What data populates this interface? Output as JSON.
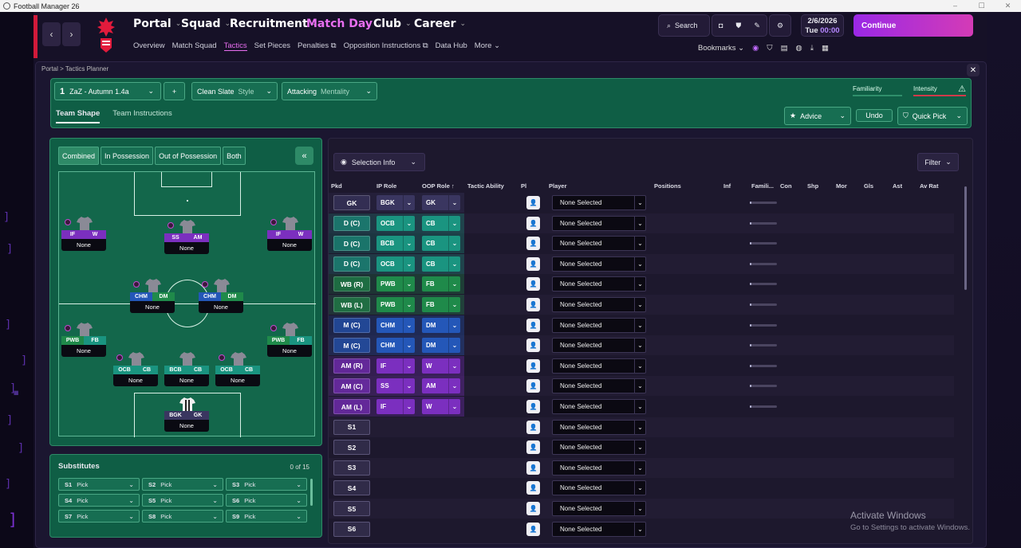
{
  "window": {
    "title": "Football Manager 26",
    "minimize": "–",
    "maximize": "☐",
    "close": "✕"
  },
  "header": {
    "back": "‹",
    "forward": "›",
    "menus": [
      {
        "label": "Portal",
        "active": false
      },
      {
        "label": "Squad",
        "active": false
      },
      {
        "label": "Recruitment",
        "active": false
      },
      {
        "label": "Match Day",
        "active": true
      },
      {
        "label": "Club",
        "active": false
      },
      {
        "label": "Career",
        "active": false
      }
    ],
    "subnav": [
      "Overview",
      "Match Squad",
      "Tactics",
      "Set Pieces",
      "Penalties",
      "Opposition Instructions",
      "Data Hub",
      "More"
    ],
    "search_label": "Search",
    "date": "2/6/2026",
    "day": "Tue",
    "time": "00:00",
    "continue_label": "Continue",
    "bookmarks_label": "Bookmarks"
  },
  "breadcrumb": {
    "root": "Portal",
    "sep": ">",
    "current": "Tactics Planner"
  },
  "tactic": {
    "slot": "1",
    "name": "ZaZ - Autumn 1.4a",
    "add": "+",
    "style_value": "Clean Slate",
    "style_label": "Style",
    "mentality_value": "Attacking",
    "mentality_label": "Mentality",
    "familiarity_label": "Familiarity",
    "intensity_label": "Intensity",
    "tabs": [
      "Team Shape",
      "Team Instructions"
    ],
    "advice_label": "Advice",
    "undo_label": "Undo",
    "quickpick_label": "Quick Pick"
  },
  "pitch_tabs": [
    "Combined",
    "In Possession",
    "Out of Possession",
    "Both"
  ],
  "collapse_label": "«",
  "positions": [
    {
      "ip": "IF",
      "oop": "W",
      "ipc": "#7b2fbf",
      "oopc": "#7b2fbf",
      "name": "None"
    },
    {
      "ip": "SS",
      "oop": "AM",
      "ipc": "#7b2fbf",
      "oopc": "#7b2fbf",
      "name": "None"
    },
    {
      "ip": "IF",
      "oop": "W",
      "ipc": "#7b2fbf",
      "oopc": "#7b2fbf",
      "name": "None"
    },
    {
      "ip": "CHM",
      "oop": "DM",
      "ipc": "#2457b8",
      "oopc": "#1f8a4a",
      "name": "None"
    },
    {
      "ip": "CHM",
      "oop": "DM",
      "ipc": "#2457b8",
      "oopc": "#1f8a4a",
      "name": "None"
    },
    {
      "ip": "PWB",
      "oop": "FB",
      "ipc": "#1f8a4a",
      "oopc": "#1a9480",
      "name": "None"
    },
    {
      "ip": "PWB",
      "oop": "FB",
      "ipc": "#1f8a4a",
      "oopc": "#1a9480",
      "name": "None"
    },
    {
      "ip": "OCB",
      "oop": "CB",
      "ipc": "#1a9480",
      "oopc": "#1a9480",
      "name": "None"
    },
    {
      "ip": "BCB",
      "oop": "CB",
      "ipc": "#1a9480",
      "oopc": "#1a9480",
      "name": "None"
    },
    {
      "ip": "OCB",
      "oop": "CB",
      "ipc": "#1a9480",
      "oopc": "#1a9480",
      "name": "None"
    },
    {
      "ip": "BGK",
      "oop": "GK",
      "ipc": "#3a3660",
      "oopc": "#3a3660",
      "name": "None"
    }
  ],
  "substitutes": {
    "title": "Substitutes",
    "count": "0 of 15",
    "slots": [
      {
        "id": "S1",
        "label": "Pick"
      },
      {
        "id": "S2",
        "label": "Pick"
      },
      {
        "id": "S3",
        "label": "Pick"
      },
      {
        "id": "S4",
        "label": "Pick"
      },
      {
        "id": "S5",
        "label": "Pick"
      },
      {
        "id": "S6",
        "label": "Pick"
      },
      {
        "id": "S7",
        "label": "Pick"
      },
      {
        "id": "S8",
        "label": "Pick"
      },
      {
        "id": "S9",
        "label": "Pick"
      }
    ]
  },
  "table": {
    "selection_info_label": "Selection Info",
    "filter_label": "Filter",
    "headers": [
      "Pkd",
      "IP Role",
      "OOP Role",
      "Tactic Ability",
      "Pl",
      "Player",
      "Positions",
      "Inf",
      "Famili...",
      "Con",
      "Shp",
      "Mor",
      "Gls",
      "Ast",
      "Av Rat"
    ],
    "rows": [
      {
        "pkd": "GK",
        "ip": "BGK",
        "oop": "GK",
        "player": "None Selected",
        "fam": 0.05,
        "tint": "#3a3660"
      },
      {
        "pkd": "D (C)",
        "ip": "OCB",
        "oop": "CB",
        "player": "None Selected",
        "fam": 0.05,
        "tint": "#1a9480"
      },
      {
        "pkd": "D (C)",
        "ip": "BCB",
        "oop": "CB",
        "player": "None Selected",
        "fam": 0.05,
        "tint": "#1a9480"
      },
      {
        "pkd": "D (C)",
        "ip": "OCB",
        "oop": "CB",
        "player": "None Selected",
        "fam": 0.05,
        "tint": "#1a9480"
      },
      {
        "pkd": "WB (R)",
        "ip": "PWB",
        "oop": "FB",
        "player": "None Selected",
        "fam": 0.05,
        "tint": "#1f8a4a"
      },
      {
        "pkd": "WB (L)",
        "ip": "PWB",
        "oop": "FB",
        "player": "None Selected",
        "fam": 0.05,
        "tint": "#1f8a4a"
      },
      {
        "pkd": "M (C)",
        "ip": "CHM",
        "oop": "DM",
        "player": "None Selected",
        "fam": 0.05,
        "tint": "#2457b8"
      },
      {
        "pkd": "M (C)",
        "ip": "CHM",
        "oop": "DM",
        "player": "None Selected",
        "fam": 0.05,
        "tint": "#2457b8"
      },
      {
        "pkd": "AM (R)",
        "ip": "IF",
        "oop": "W",
        "player": "None Selected",
        "fam": 0.05,
        "tint": "#7b2fbf"
      },
      {
        "pkd": "AM (C)",
        "ip": "SS",
        "oop": "AM",
        "player": "None Selected",
        "fam": 0.05,
        "tint": "#7b2fbf"
      },
      {
        "pkd": "AM (L)",
        "ip": "IF",
        "oop": "W",
        "player": "None Selected",
        "fam": 0.05,
        "tint": "#7b2fbf"
      },
      {
        "pkd": "S1",
        "ip": "",
        "oop": "",
        "player": "None Selected",
        "fam": 0,
        "tint": ""
      },
      {
        "pkd": "S2",
        "ip": "",
        "oop": "",
        "player": "None Selected",
        "fam": 0,
        "tint": ""
      },
      {
        "pkd": "S3",
        "ip": "",
        "oop": "",
        "player": "None Selected",
        "fam": 0,
        "tint": ""
      },
      {
        "pkd": "S4",
        "ip": "",
        "oop": "",
        "player": "None Selected",
        "fam": 0,
        "tint": ""
      },
      {
        "pkd": "S5",
        "ip": "",
        "oop": "",
        "player": "None Selected",
        "fam": 0,
        "tint": ""
      },
      {
        "pkd": "S6",
        "ip": "",
        "oop": "",
        "player": "None Selected",
        "fam": 0,
        "tint": ""
      }
    ]
  },
  "watermark": {
    "line1": "Activate Windows",
    "line2": "Go to Settings to activate Windows."
  },
  "colors": {
    "accent": "#e86ef0",
    "green": "#0f5e45",
    "continue": "#b531d0"
  }
}
